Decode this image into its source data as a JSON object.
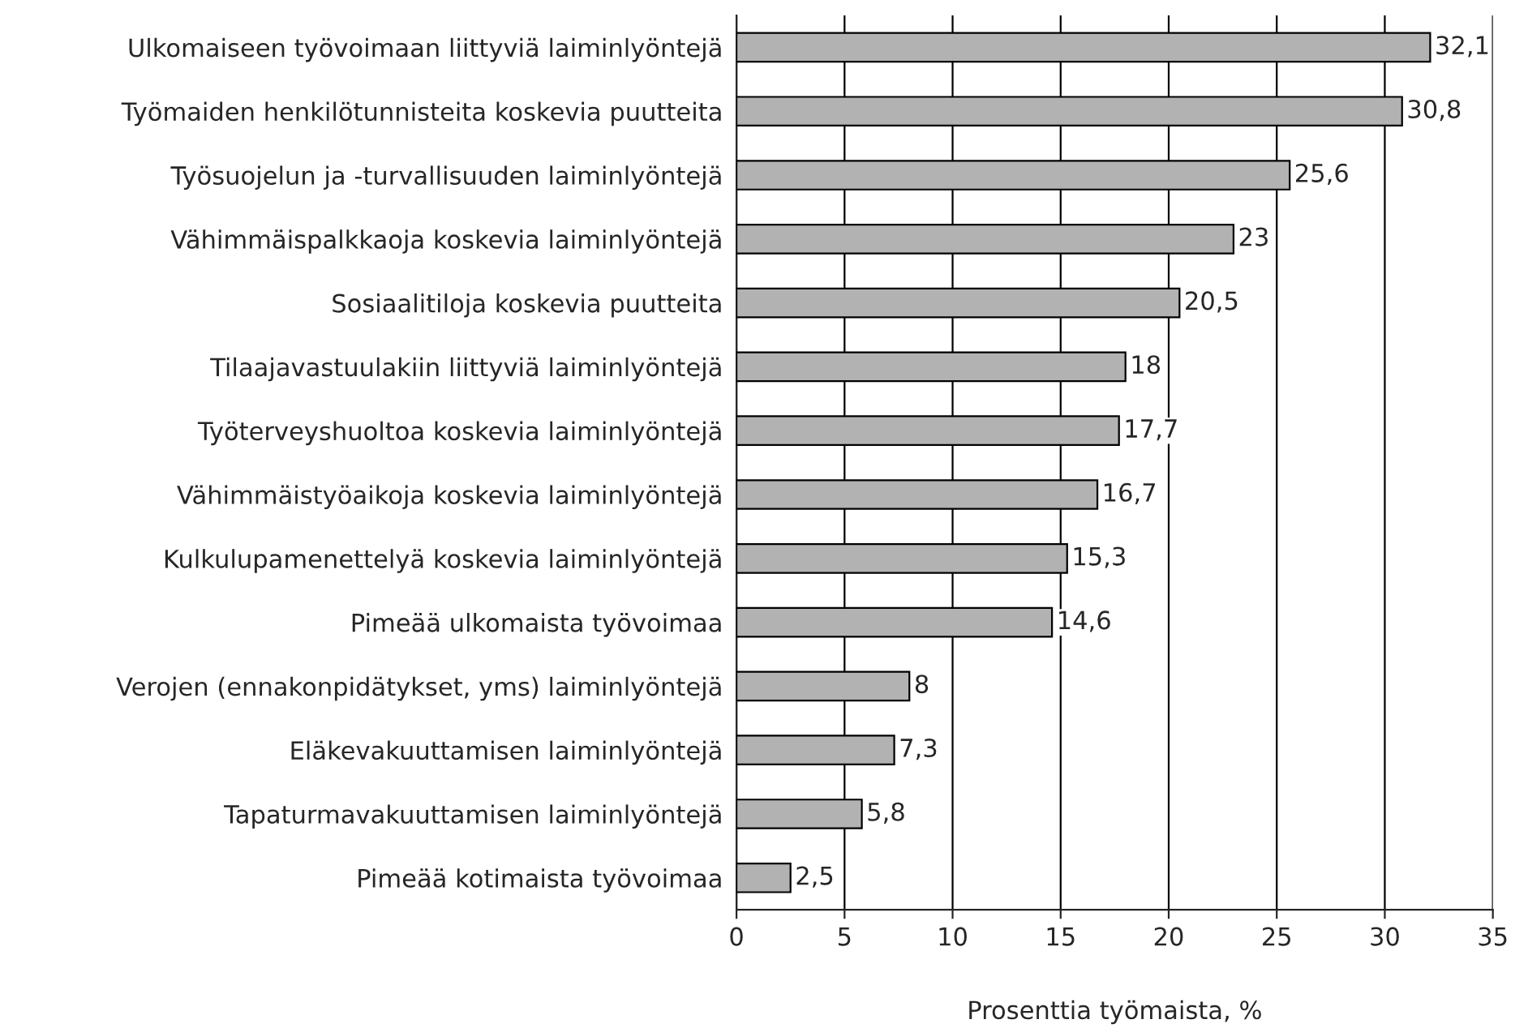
{
  "chart_data": {
    "type": "bar",
    "orientation": "horizontal",
    "xlabel": "Prosenttia työmaista, %",
    "categories": [
      "Ulkomaiseen työvoimaan liittyviä laiminlyöntejä",
      "Työmaiden henkilötunnisteita koskevia puutteita",
      "Työsuojelun ja -turvallisuuden laiminlyöntejä",
      "Vähimmäispalkkaoja koskevia laiminlyöntejä",
      "Sosiaalitiloja koskevia puutteita",
      "Tilaajavastuulakiin liittyviä laiminlyöntejä",
      "Työterveyshuoltoa koskevia laiminlyöntejä",
      "Vähimmäistyöaikoja koskevia laiminlyöntejä",
      "Kulkulupamenettelyä koskevia laiminlyöntejä",
      "Pimeää ulkomaista työvoimaa",
      "Verojen (ennakonpidätykset, yms) laiminlyöntejä",
      "Eläkevakuuttamisen laiminlyöntejä",
      "Tapaturmavakuuttamisen laiminlyöntejä",
      "Pimeää kotimaista työvoimaa"
    ],
    "values": [
      32.1,
      30.8,
      25.6,
      23,
      20.5,
      18,
      17.7,
      16.7,
      15.3,
      14.6,
      8,
      7.3,
      5.8,
      2.5
    ],
    "value_labels": [
      "32,1",
      "30,8",
      "25,6",
      "23",
      "20,5",
      "18",
      "17,7",
      "16,7",
      "15,3",
      "14,6",
      "8",
      "7,3",
      "5,8",
      "2,5"
    ],
    "color": "#b2b2b2",
    "xlim": [
      0,
      35
    ],
    "xticks": [
      0,
      5,
      10,
      15,
      20,
      25,
      30,
      35
    ],
    "grid": "x"
  }
}
